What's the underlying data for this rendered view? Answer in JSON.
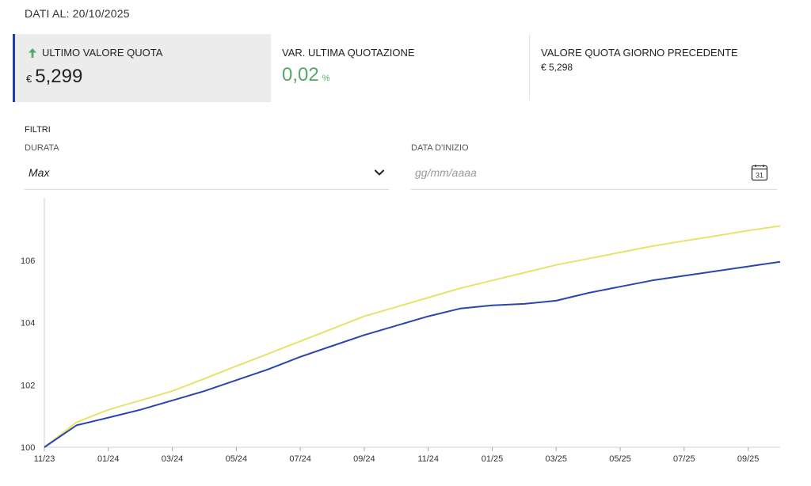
{
  "header": {
    "dati_al": "DATI AL: 20/10/2025"
  },
  "kpis": {
    "ultimo": {
      "label": "ULTIMO VALORE QUOTA",
      "currency": "€",
      "value": "5,299",
      "trend_icon": "arrow-up-icon"
    },
    "variazione": {
      "label": "VAR. ULTIMA QUOTAZIONE",
      "value": "0,02",
      "unit": "%"
    },
    "precedente": {
      "label": "VALORE QUOTA GIORNO PRECEDENTE",
      "value": "€ 5,298"
    }
  },
  "filters": {
    "title": "FILTRI",
    "durata": {
      "label": "DURATA",
      "value": "Max"
    },
    "data_inizio": {
      "label": "DATA D'INIZIO",
      "placeholder": "gg/mm/aaaa",
      "calendar_day": "31"
    }
  },
  "colors": {
    "accent": "#1b3fa6",
    "positive": "#55a865",
    "series_yellow": "#e8e26a",
    "series_blue": "#2b44b0"
  },
  "chart_data": {
    "type": "line",
    "x": [
      "11/23",
      "12/23",
      "01/24",
      "02/24",
      "03/24",
      "04/24",
      "05/24",
      "06/24",
      "07/24",
      "08/24",
      "09/24",
      "10/24",
      "11/24",
      "12/24",
      "01/25",
      "02/25",
      "03/25",
      "04/25",
      "05/25",
      "06/25",
      "07/25",
      "08/25",
      "09/25",
      "10/25"
    ],
    "tick_labels": [
      "11/23",
      "01/24",
      "03/24",
      "05/24",
      "07/24",
      "09/24",
      "11/24",
      "01/25",
      "03/25",
      "05/25",
      "07/25",
      "09/25"
    ],
    "yticks": [
      100,
      102,
      104,
      106
    ],
    "ylim": [
      100,
      108
    ],
    "grid": false,
    "series": [
      {
        "values": [
          100.0,
          100.8,
          101.2,
          101.5,
          101.8,
          102.2,
          102.6,
          103.0,
          103.4,
          103.8,
          104.2,
          104.5,
          104.8,
          105.1,
          105.35,
          105.6,
          105.85,
          106.05,
          106.25,
          106.45,
          106.62,
          106.78,
          106.95,
          107.1
        ]
      },
      {
        "values": [
          100.0,
          100.7,
          100.95,
          101.2,
          101.5,
          101.8,
          102.15,
          102.5,
          102.9,
          103.25,
          103.6,
          103.9,
          104.2,
          104.45,
          104.55,
          104.6,
          104.7,
          104.95,
          105.15,
          105.35,
          105.5,
          105.65,
          105.8,
          105.95
        ]
      }
    ]
  }
}
